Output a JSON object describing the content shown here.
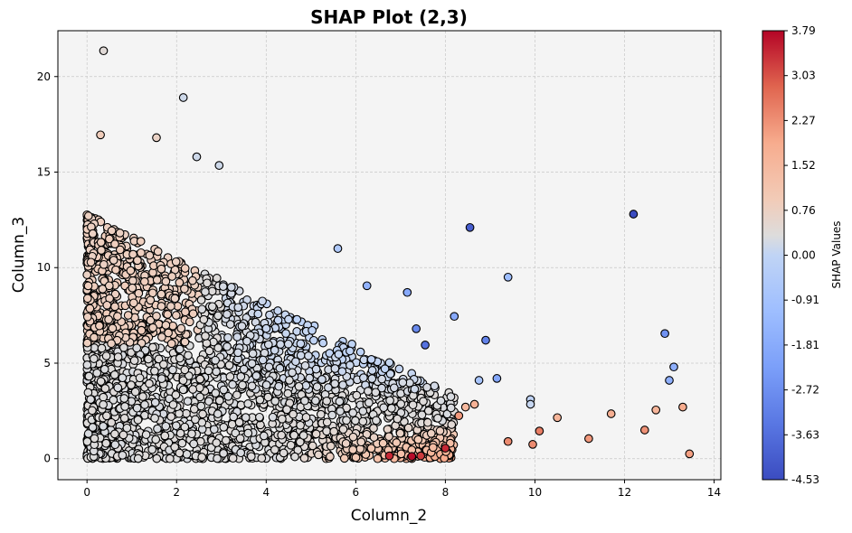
{
  "chart_data": {
    "type": "scatter",
    "title": "SHAP Plot (2,3)",
    "xlabel": "Column_2",
    "ylabel": "Column_3",
    "xlim": [
      -0.65,
      14.15
    ],
    "ylim": [
      -1.1,
      22.4
    ],
    "xticks": [
      0,
      2,
      4,
      6,
      8,
      10,
      12,
      14
    ],
    "yticks": [
      0,
      5,
      10,
      15,
      20
    ],
    "grid": true,
    "colormap": "coolwarm",
    "colorbar": {
      "label": "SHAP Values",
      "min": -4.53,
      "max": 3.79,
      "ticks": [
        "3.79",
        "3.03",
        "2.27",
        "1.52",
        "0.76",
        "0.00",
        "-0.91",
        "-1.81",
        "-2.72",
        "-3.63",
        "-4.53"
      ]
    },
    "colors": {
      "plot_bg": "#f4f4f4",
      "grid": "#c8c8c8",
      "edge": "#000000",
      "cmap_low": "#3b4cc0",
      "cmap_mid": "#dddddd",
      "cmap_high": "#b40426"
    },
    "highlight_points": [
      {
        "x": 0.37,
        "y": 21.35,
        "shap": 0.1
      },
      {
        "x": 2.15,
        "y": 18.9,
        "shap": -0.2
      },
      {
        "x": 1.55,
        "y": 16.8,
        "shap": 0.4
      },
      {
        "x": 0.3,
        "y": 16.95,
        "shap": 0.6
      },
      {
        "x": 2.45,
        "y": 15.8,
        "shap": -0.2
      },
      {
        "x": 2.95,
        "y": 15.35,
        "shap": -0.2
      },
      {
        "x": 8.55,
        "y": 12.1,
        "shap": -4.1
      },
      {
        "x": 12.2,
        "y": 12.8,
        "shap": -4.53
      },
      {
        "x": 9.4,
        "y": 9.5,
        "shap": -1.4
      },
      {
        "x": 5.6,
        "y": 11.0,
        "shap": -0.9
      },
      {
        "x": 12.9,
        "y": 6.55,
        "shap": -2.8
      },
      {
        "x": 13.1,
        "y": 4.8,
        "shap": -1.9
      },
      {
        "x": 13.0,
        "y": 4.1,
        "shap": -1.9
      },
      {
        "x": 9.9,
        "y": 3.1,
        "shap": -0.4
      },
      {
        "x": 9.9,
        "y": 2.85,
        "shap": -0.3
      },
      {
        "x": 10.5,
        "y": 2.15,
        "shap": 1.4
      },
      {
        "x": 11.7,
        "y": 2.35,
        "shap": 1.6
      },
      {
        "x": 12.7,
        "y": 2.55,
        "shap": 1.4
      },
      {
        "x": 13.3,
        "y": 2.7,
        "shap": 1.7
      },
      {
        "x": 13.45,
        "y": 0.25,
        "shap": 1.9
      },
      {
        "x": 12.45,
        "y": 1.5,
        "shap": 2.1
      },
      {
        "x": 11.2,
        "y": 1.05,
        "shap": 2.0
      },
      {
        "x": 10.1,
        "y": 1.45,
        "shap": 2.4
      },
      {
        "x": 9.95,
        "y": 0.75,
        "shap": 2.2
      },
      {
        "x": 9.4,
        "y": 0.9,
        "shap": 2.2
      },
      {
        "x": 8.9,
        "y": 6.2,
        "shap": -3.2
      },
      {
        "x": 8.75,
        "y": 4.1,
        "shap": -1.1
      },
      {
        "x": 9.15,
        "y": 4.2,
        "shap": -2.2
      },
      {
        "x": 8.2,
        "y": 7.45,
        "shap": -2.1
      },
      {
        "x": 8.0,
        "y": 0.55,
        "shap": 3.4
      },
      {
        "x": 7.25,
        "y": 0.12,
        "shap": 3.7
      },
      {
        "x": 7.45,
        "y": 0.15,
        "shap": 3.2
      },
      {
        "x": 6.75,
        "y": 0.15,
        "shap": 3.4
      },
      {
        "x": 7.35,
        "y": 6.8,
        "shap": -3.0
      },
      {
        "x": 7.55,
        "y": 5.95,
        "shap": -3.6
      },
      {
        "x": 7.15,
        "y": 8.7,
        "shap": -2.1
      },
      {
        "x": 6.25,
        "y": 9.05,
        "shap": -1.8
      },
      {
        "x": 8.45,
        "y": 2.7,
        "shap": 1.3
      },
      {
        "x": 8.65,
        "y": 2.85,
        "shap": 1.5
      },
      {
        "x": 8.3,
        "y": 2.25,
        "shap": 2.0
      }
    ],
    "dense_region_note": "thousands of points concentrated at x 0-8, y 0-13; shap near 0 (light tones), blue for higher y at x 3-9, red for low y at x 5-9",
    "cloud_seed": 7
  }
}
